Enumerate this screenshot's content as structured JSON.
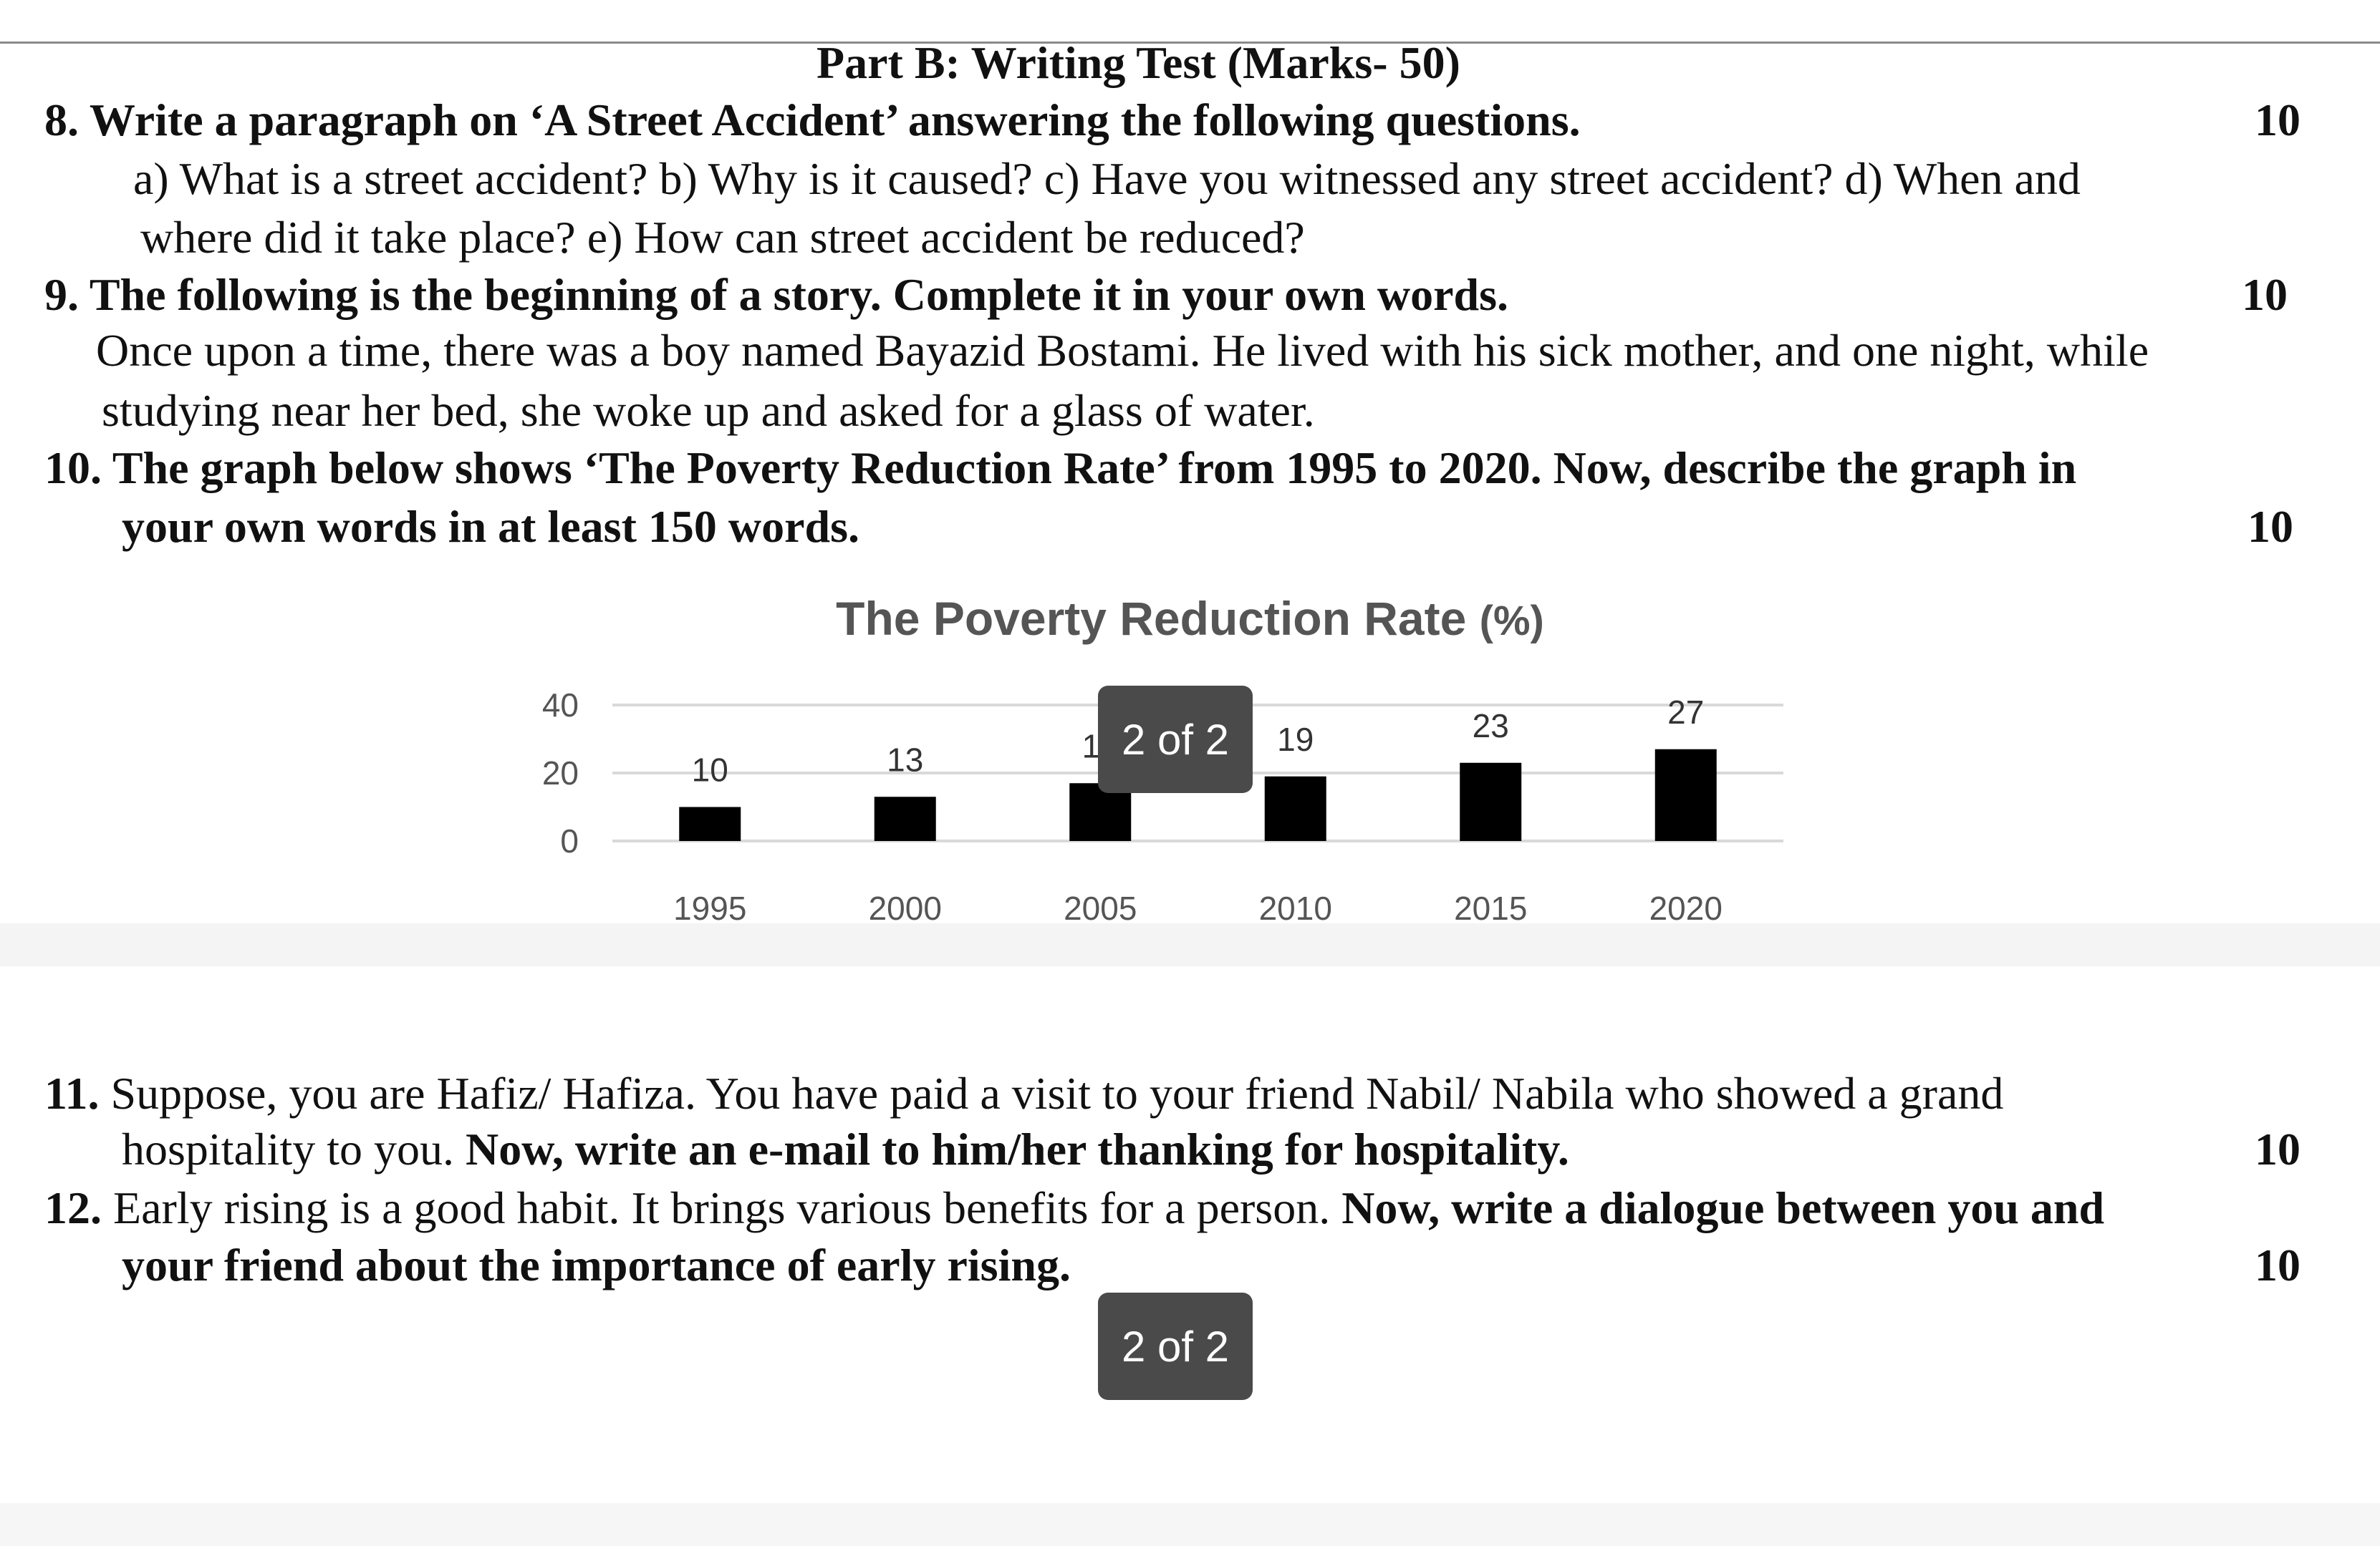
{
  "part_title": "Part B: Writing Test (Marks- 50)",
  "q8": {
    "head": "8. Write a paragraph on ‘A Street Accident’ answering the following questions.",
    "marks": "10",
    "line1": "a) What is a street accident? b) Why is it caused? c) Have you witnessed any street accident? d) When and",
    "line2": "where did it take place? e) How can street accident be reduced?"
  },
  "q9": {
    "head": "9. The following is the beginning of a story. Complete it in your own words.",
    "marks": "10",
    "line1": "Once upon a time, there was a boy named Bayazid Bostami. He lived with his sick mother, and one night, while",
    "line2": "studying near her bed, she woke up and asked for a glass of water."
  },
  "q10": {
    "line1": "10. The graph below shows ‘The Poverty Reduction Rate’ from 1995 to 2020. Now, describe the graph in",
    "line2": "your own words in at least 150 words.",
    "marks": "10"
  },
  "q11": {
    "num": "11.",
    "line1": " Suppose, you are Hafiz/ Hafiza. You have paid a visit to your friend Nabil/ Nabila who showed a grand",
    "line2_plain": "hospitality to you. ",
    "line2_bold": "Now, write an e-mail to him/her thanking for hospitality.",
    "marks": "10"
  },
  "q12": {
    "num": "12.",
    "line1_plain": " Early rising is a good habit. It brings various benefits for a person. ",
    "line1_bold": "Now, write a dialogue between you and",
    "line2": "your friend about the importance of early rising.",
    "marks": "10"
  },
  "page_indicator": "2 of 2",
  "chart_data": {
    "type": "bar",
    "title": "The Poverty Reduction Rate",
    "title_unit": "(%)",
    "categories": [
      "1995",
      "2000",
      "2005",
      "2010",
      "2015",
      "2020"
    ],
    "values": [
      10,
      13,
      17,
      19,
      23,
      27
    ],
    "ylim": [
      0,
      40
    ],
    "yticks": [
      0,
      20,
      40
    ],
    "grid": true,
    "bar_color": "#000000",
    "grid_color": "#d9d9d9"
  }
}
